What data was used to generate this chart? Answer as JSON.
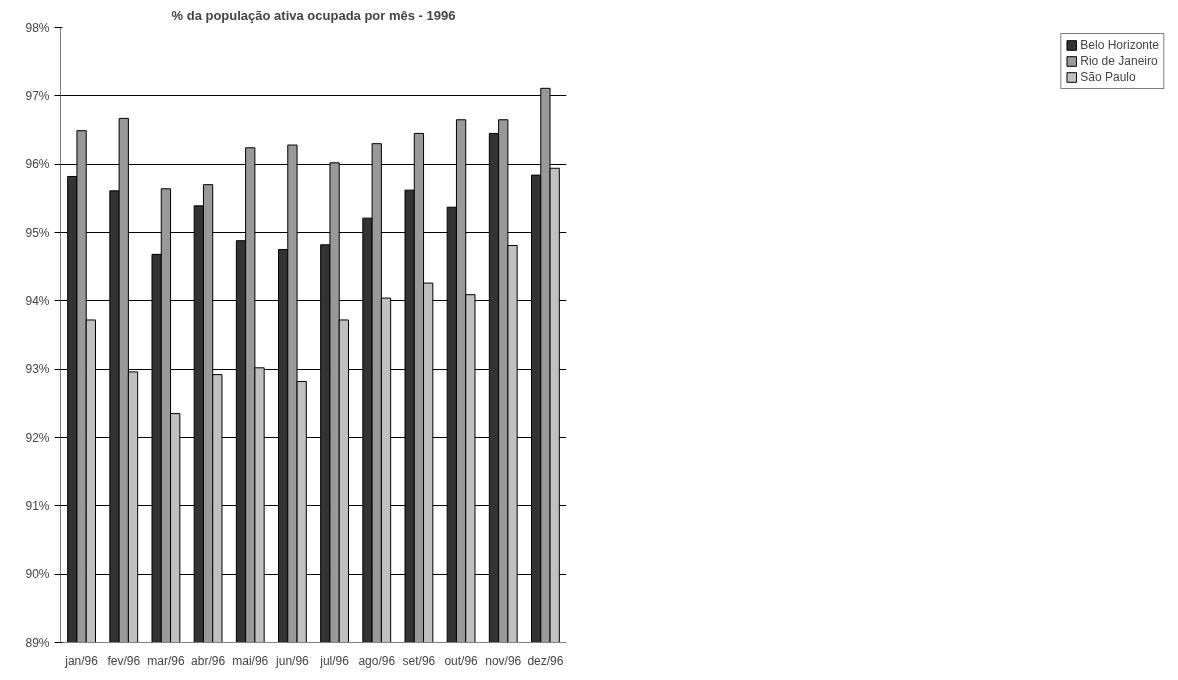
{
  "chart_data": {
    "type": "bar",
    "title": "% da população ativa ocupada por mês - 1996",
    "categories": [
      "jan/96",
      "fev/96",
      "mar/96",
      "abr/96",
      "mai/96",
      "jun/96",
      "jul/96",
      "ago/96",
      "set/96",
      "out/96",
      "nov/96",
      "dez/96"
    ],
    "series": [
      {
        "name": "Belo Horizonte",
        "color": "#333333",
        "values": [
          95.82,
          95.61,
          94.68,
          95.39,
          94.88,
          94.75,
          94.82,
          95.21,
          95.62,
          95.37,
          96.45,
          95.84
        ]
      },
      {
        "name": "Rio de Janeiro",
        "color": "#999999",
        "values": [
          96.49,
          96.67,
          95.64,
          95.7,
          96.24,
          96.28,
          96.02,
          96.3,
          96.45,
          96.65,
          96.65,
          97.11
        ]
      },
      {
        "name": "São Paulo",
        "color": "#c0c0c0",
        "values": [
          93.72,
          92.96,
          92.35,
          92.92,
          93.02,
          92.82,
          93.72,
          94.04,
          94.26,
          94.09,
          94.81,
          95.94
        ]
      }
    ],
    "ylim": [
      89,
      98
    ],
    "yticks": [
      {
        "value": 89,
        "label": "89%"
      },
      {
        "value": 90,
        "label": "90%"
      },
      {
        "value": 91,
        "label": "91%"
      },
      {
        "value": 92,
        "label": "92%"
      },
      {
        "value": 93,
        "label": "93%"
      },
      {
        "value": 94,
        "label": "94%"
      },
      {
        "value": 95,
        "label": "95%"
      },
      {
        "value": 96,
        "label": "96%"
      },
      {
        "value": 97,
        "label": "97%"
      },
      {
        "value": 98,
        "label": "98%"
      }
    ],
    "grid": "y",
    "legend": "right"
  }
}
